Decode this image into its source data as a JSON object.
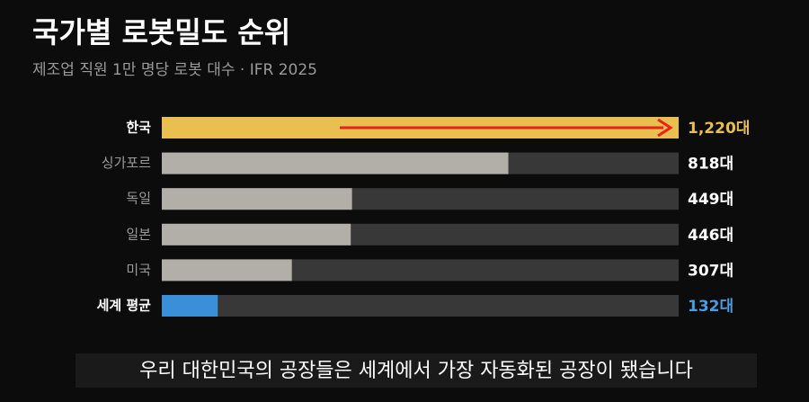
{
  "chart_data": {
    "type": "bar",
    "orientation": "horizontal",
    "title": "국가별 로봇밀도 순위",
    "subtitle": "제조업 직원 1만 명당 로봇 대수 · IFR 2025",
    "categories": [
      "한국",
      "싱가포르",
      "독일",
      "일본",
      "미국",
      "세계 평균"
    ],
    "values": [
      1220,
      818,
      449,
      446,
      307,
      132
    ],
    "value_labels": [
      "1,220대",
      "818대",
      "449대",
      "446대",
      "307대",
      "132대"
    ],
    "colors": [
      "#e9bf4f",
      "#b2aea8",
      "#b2aea8",
      "#b2aea8",
      "#b2aea8",
      "#3b8fd8"
    ],
    "label_colors": [
      "#e9bf4f",
      "#ffffff",
      "#ffffff",
      "#ffffff",
      "#ffffff",
      "#4a9be0"
    ],
    "track_color": "#383838",
    "xlim": [
      0,
      1220
    ],
    "caption": "우리 대한민국의 공장들은 세계에서 가장 자동화된 공장이 됐습니다"
  }
}
